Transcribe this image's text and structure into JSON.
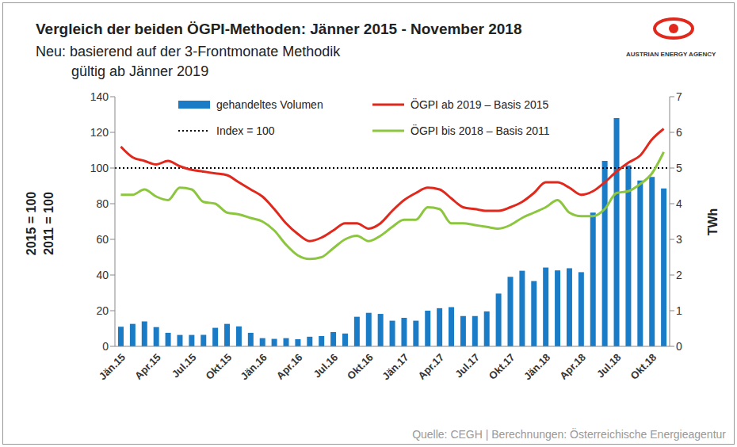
{
  "chart_data": {
    "type": "combo",
    "title": "Vergleich der beiden ÖGPI-Methoden: Jänner 2015 - November 2018",
    "subtitle": [
      "Neu: basierend auf der 3-Frontmonate Methodik",
      "gültig ab Jänner 2019"
    ],
    "ylabel": [
      "2015 = 100",
      "2011 = 100"
    ],
    "y2label": "TWh",
    "source": "Quelle: CEGH | Berechnungen: Österreichische Energieagentur",
    "logo_text": "AUSTRIAN ENERGY AGENCY",
    "categories": [
      "Jän.15",
      null,
      null,
      "Apr.15",
      null,
      null,
      "Jul.15",
      null,
      null,
      "Okt.15",
      null,
      null,
      "Jän.16",
      null,
      null,
      "Apr.16",
      null,
      null,
      "Jul.16",
      null,
      null,
      "Okt.16",
      null,
      null,
      "Jän.17",
      null,
      null,
      "Apr.17",
      null,
      null,
      "Jul.17",
      null,
      null,
      "Okt.17",
      null,
      null,
      "Jän.18",
      null,
      null,
      "Apr.18",
      null,
      null,
      "Jul.18",
      null,
      null,
      "Okt.18",
      null
    ],
    "ylim": [
      0,
      140
    ],
    "yticks": [
      0,
      20,
      40,
      60,
      80,
      100,
      120,
      140
    ],
    "y2lim": [
      0,
      7
    ],
    "y2ticks": [
      0,
      1,
      2,
      3,
      4,
      5,
      6,
      7
    ],
    "grid": false,
    "series": [
      {
        "name": "gehandeltes Volumen",
        "type": "bar",
        "axis": "y2",
        "color": "#1a7cc7",
        "values": [
          0.55,
          0.63,
          0.7,
          0.54,
          0.38,
          0.32,
          0.32,
          0.32,
          0.52,
          0.63,
          0.56,
          0.38,
          0.23,
          0.21,
          0.23,
          0.2,
          0.27,
          0.29,
          0.4,
          0.36,
          0.83,
          0.94,
          0.91,
          0.72,
          0.8,
          0.72,
          1.0,
          1.07,
          1.1,
          0.85,
          0.85,
          0.98,
          1.48,
          1.95,
          2.12,
          1.83,
          2.21,
          2.13,
          2.19,
          2.08,
          3.75,
          5.2,
          6.4,
          5.07,
          4.65,
          4.75,
          4.43
        ]
      },
      {
        "name": "ÖGPI ab 2019 – Basis 2015",
        "type": "line",
        "color": "#e0281c",
        "line_style": "solid",
        "values": [
          112,
          106,
          104,
          102,
          104,
          101,
          99,
          98,
          97,
          96,
          92,
          88,
          84,
          77,
          69,
          63,
          59,
          61,
          65,
          69,
          69,
          66,
          69,
          76,
          82,
          86,
          89,
          88,
          83,
          78,
          77,
          76,
          76,
          78,
          81,
          86,
          92,
          92,
          89,
          85,
          87,
          92,
          98,
          103,
          107,
          116,
          122
        ]
      },
      {
        "name": "ÖGPI bis 2018 – Basis 2011",
        "type": "line",
        "color": "#8cc63f",
        "line_style": "solid",
        "values": [
          85,
          85,
          88,
          84,
          82,
          89,
          88,
          81,
          80,
          75,
          74,
          72,
          70,
          65,
          57,
          51,
          49,
          50,
          55,
          60,
          62,
          59,
          62,
          67,
          71,
          71,
          78,
          77,
          69,
          69,
          68,
          67,
          66,
          68,
          72,
          75,
          78,
          82,
          75,
          73,
          73,
          77,
          86,
          87,
          91,
          97,
          109
        ]
      }
    ],
    "reference_lines": [
      {
        "name": "Index = 100",
        "value": 100,
        "color": "#000000",
        "line_style": "dotted"
      }
    ]
  }
}
